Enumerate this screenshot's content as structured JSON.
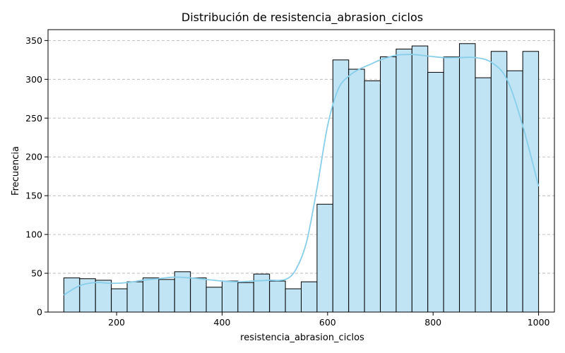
{
  "chart_data": {
    "type": "bar",
    "title": "Distribución de resistencia_abrasion_ciclos",
    "xlabel": "resistencia_abrasion_ciclos",
    "ylabel": "Frecuencia",
    "xlim": [
      70,
      1030
    ],
    "ylim": [
      0,
      364
    ],
    "x_ticks": [
      200,
      400,
      600,
      800,
      1000
    ],
    "y_ticks": [
      0,
      50,
      100,
      150,
      200,
      250,
      300,
      350
    ],
    "grid": "y-dashed",
    "bar_color": "#c0e4f3",
    "edge_color": "#000000",
    "kde_color": "#87ceeb",
    "bins": {
      "edges": [
        100,
        130,
        160,
        190,
        220,
        250,
        280,
        310,
        340,
        370,
        400,
        430,
        460,
        490,
        520,
        550,
        580,
        610,
        640,
        670,
        700,
        730,
        760,
        790,
        820,
        850,
        880,
        910,
        940,
        970,
        1000
      ],
      "counts": [
        44,
        43,
        41,
        30,
        39,
        44,
        42,
        52,
        44,
        32,
        40,
        38,
        49,
        40,
        30,
        39,
        139,
        325,
        313,
        298,
        329,
        339,
        343,
        309,
        329,
        346,
        302,
        336,
        311,
        336
      ]
    },
    "kde": {
      "x": [
        100,
        130,
        160,
        190,
        220,
        250,
        280,
        310,
        340,
        370,
        400,
        430,
        460,
        490,
        520,
        540,
        560,
        580,
        600,
        620,
        640,
        660,
        680,
        700,
        730,
        760,
        790,
        820,
        850,
        880,
        910,
        940,
        970,
        1000
      ],
      "y": [
        22,
        34,
        38,
        37,
        38,
        41,
        43,
        45,
        44,
        42,
        40,
        39,
        40,
        41,
        42,
        55,
        90,
        160,
        240,
        287,
        304,
        313,
        319,
        325,
        331,
        332,
        330,
        328,
        328,
        328,
        322,
        300,
        240,
        162
      ]
    }
  }
}
